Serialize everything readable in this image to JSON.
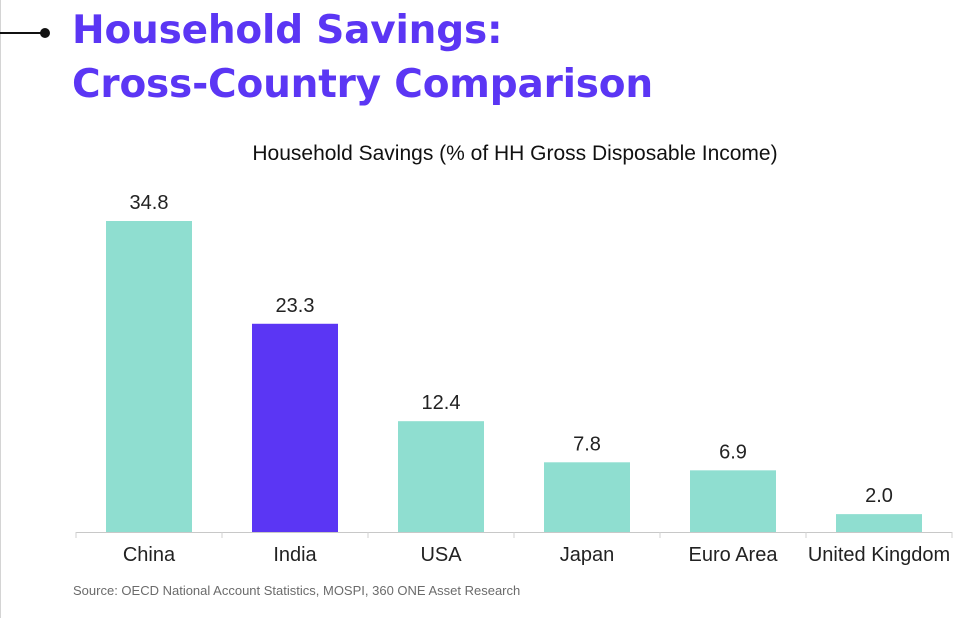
{
  "header": {
    "title_line1": "Household Savings:",
    "title_line2": "Cross-Country Comparison"
  },
  "colors": {
    "title": "#5b36f4",
    "bar_default": "#8fded0",
    "bar_highlight": "#5b36f4"
  },
  "source": "Source: OECD National Account Statistics, MOSPI, 360 ONE Asset Research",
  "chart_data": {
    "type": "bar",
    "title": "Household Savings (% of HH Gross Disposable Income)",
    "categories": [
      "China",
      "India",
      "USA",
      "Japan",
      "Euro Area",
      "United Kingdom"
    ],
    "values": [
      34.8,
      23.3,
      12.4,
      7.8,
      6.9,
      2.0
    ],
    "data_labels": [
      "34.8",
      "23.3",
      "12.4",
      "7.8",
      "6.9",
      "2.0"
    ],
    "highlight_category": "India",
    "xlabel": "",
    "ylabel": "",
    "ylim": [
      0,
      35
    ],
    "grid": false,
    "legend": "none"
  }
}
